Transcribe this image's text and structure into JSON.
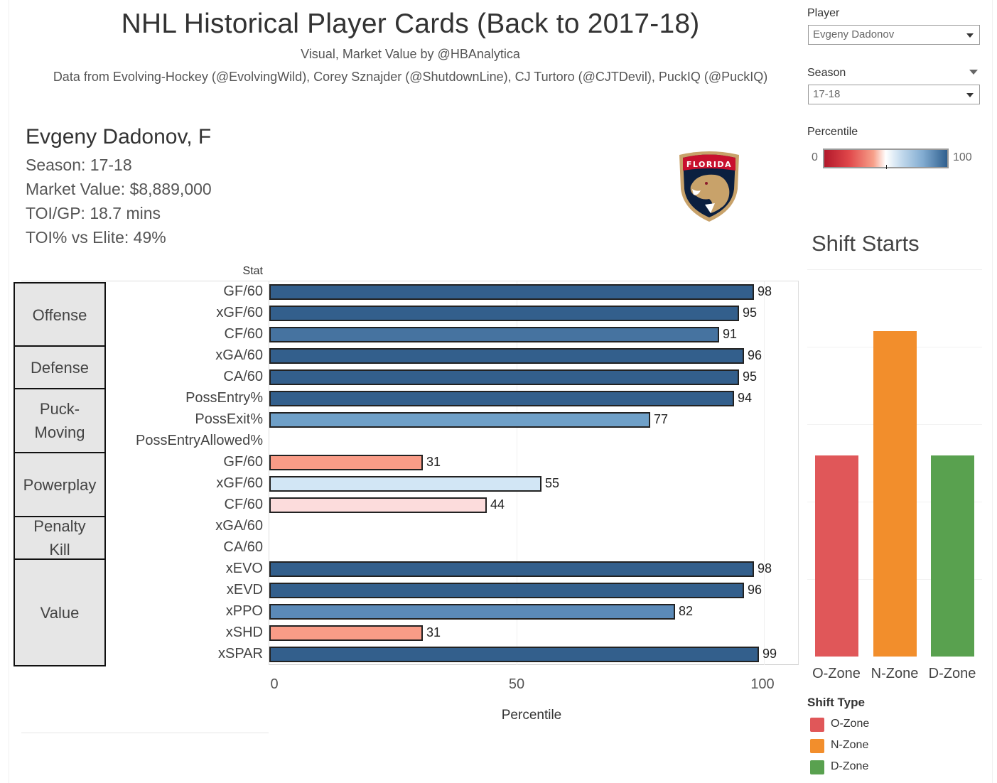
{
  "header": {
    "title": "NHL Historical Player Cards (Back to 2017-18)",
    "subtitle": "Visual, Market Value by @HBAnalytica",
    "credits": "Data from Evolving-Hockey (@EvolvingWild), Corey Sznajder (@ShutdownLine), CJ Turtoro (@CJTDevil), PuckIQ (@PuckIQ)"
  },
  "player_info": {
    "name": "Evgeny Dadonov, F",
    "season": "Season: 17-18",
    "market_value": "Market Value: $8,889,000",
    "toi_gp": "TOI/GP: 18.7 mins",
    "toi_elite": "TOI% vs Elite: 49%",
    "team_logo": "FLORIDA"
  },
  "controls": {
    "player_label": "Player",
    "player_value": "Evgeny Dadonov",
    "season_label": "Season",
    "season_value": "17-18",
    "percentile_label": "Percentile",
    "percentile_min": "0",
    "percentile_max": "100"
  },
  "colors": {
    "dark_blue": "#335f8c",
    "mid_blue": "#4673a0",
    "light_blue": "#6fa0c8",
    "steel_blue": "#5b8ab8",
    "pale_blue": "#d2e6f5",
    "salmon": "#f99c87",
    "pale_pink": "#fcdcdc",
    "o_zone": "#e05759",
    "n_zone": "#f28e2c",
    "d_zone": "#59a14f"
  },
  "chart_data": [
    {
      "type": "bar",
      "orientation": "horizontal",
      "title": "",
      "ylabel": "Stat",
      "xlabel": "Percentile",
      "xlim": [
        0,
        100
      ],
      "xticks": [
        "0",
        "50",
        "100"
      ],
      "groups": [
        {
          "label": "Offense",
          "rows": 3
        },
        {
          "label": "Defense",
          "rows": 2
        },
        {
          "label": "Puck-\nMoving",
          "rows": 3
        },
        {
          "label": "Powerplay",
          "rows": 3
        },
        {
          "label": "Penalty\nKill",
          "rows": 2
        },
        {
          "label": "Value",
          "rows": 5
        }
      ],
      "categories": [
        "GF/60",
        "xGF/60",
        "CF/60",
        "xGA/60",
        "CA/60",
        "PossEntry%",
        "PossExit%",
        "PossEntryAllowed%",
        "GF/60",
        "xGF/60",
        "CF/60",
        "xGA/60",
        "CA/60",
        "xEVO",
        "xEVD",
        "xPPO",
        "xSHD",
        "xSPAR"
      ],
      "values": [
        98,
        95,
        91,
        96,
        95,
        94,
        77,
        null,
        31,
        55,
        44,
        null,
        null,
        98,
        96,
        82,
        31,
        99
      ],
      "value_labels": [
        "98",
        "95",
        "91",
        "96",
        "95",
        "94",
        "77",
        "",
        "31",
        "55",
        "44",
        "",
        "",
        "98",
        "96",
        "82",
        "31",
        "99"
      ]
    },
    {
      "type": "bar",
      "title": "Shift Starts",
      "legend_title": "Shift Type",
      "legend_position": "bottom-right",
      "categories": [
        "O-Zone",
        "N-Zone",
        "D-Zone"
      ],
      "values": [
        2.6,
        4.2,
        2.6
      ],
      "value_note": "relative heights in gridline units (axis unlabeled)",
      "grid": true
    }
  ]
}
